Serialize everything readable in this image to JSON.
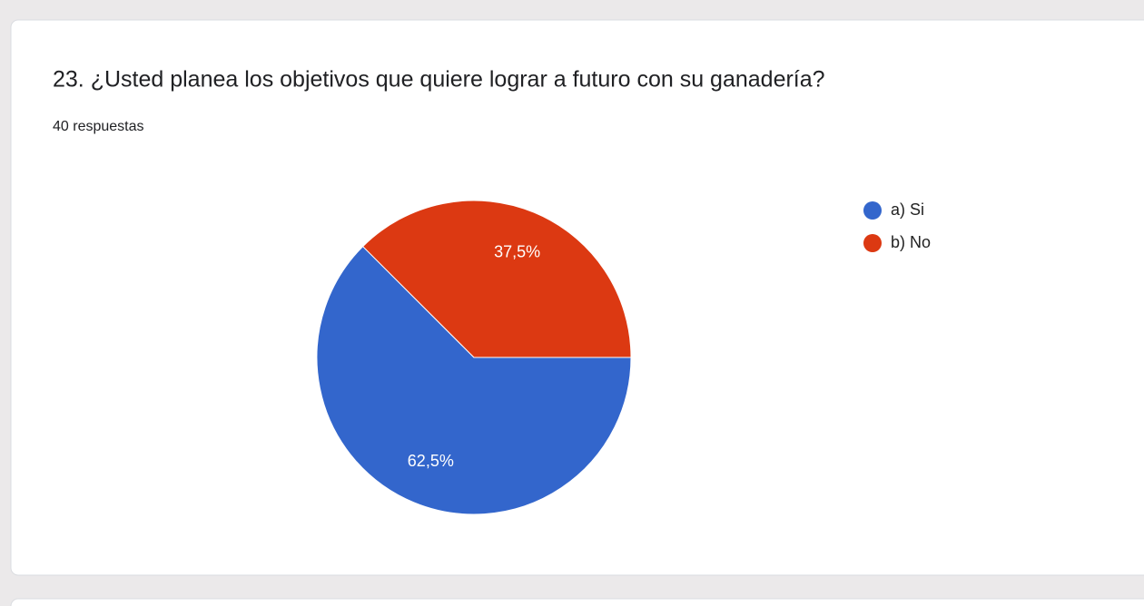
{
  "chart_data": {
    "type": "pie",
    "title": "23. ¿Usted planea los objetivos que quiere lograr a futuro con su ganadería?",
    "subtitle": "40 respuestas",
    "categories": [
      "a) Si",
      "b) No"
    ],
    "values": [
      62.5,
      37.5
    ],
    "value_labels": [
      "62,5%",
      "37,5%"
    ],
    "colors": [
      "#3366cc",
      "#dc3912"
    ],
    "legend": "right"
  }
}
